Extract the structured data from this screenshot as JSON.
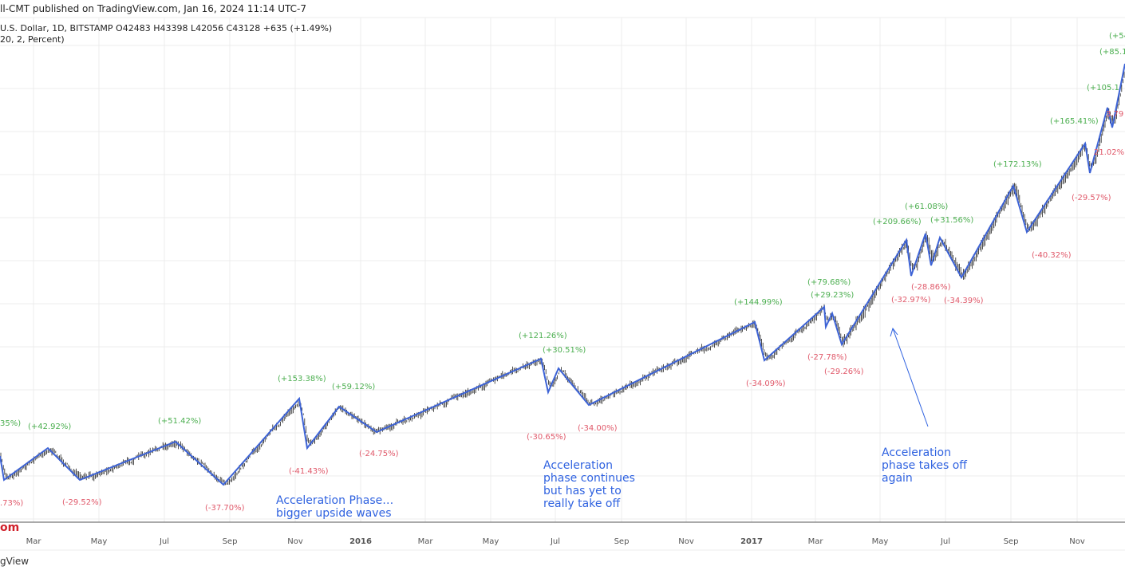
{
  "header": {
    "published": "ll-CMT published on TradingView.com, Jan 16, 2024 11:14 UTC-7",
    "symbol_line": "U.S. Dollar, 1D, BITSTAMP  O42483  H43398  L42056  C43128  +635 (+1.49%)",
    "indicator_line": "20, 2, Percent)"
  },
  "footer": {
    "brand_text": "om",
    "logo_text": "gView"
  },
  "colors": {
    "wave_line": "#3d63d6",
    "up_label": "#4caf50",
    "down_label": "#e0596a",
    "annotation": "#2f62e0",
    "candles": "#222222",
    "grid": "#ececec"
  },
  "chart_data": {
    "type": "candlestick",
    "title": "",
    "grid": true,
    "x_ticks": [
      {
        "label": "Mar",
        "bold": false
      },
      {
        "label": "May",
        "bold": false
      },
      {
        "label": "Jul",
        "bold": false
      },
      {
        "label": "Sep",
        "bold": false
      },
      {
        "label": "Nov",
        "bold": false
      },
      {
        "label": "2016",
        "bold": true
      },
      {
        "label": "Mar",
        "bold": false
      },
      {
        "label": "May",
        "bold": false
      },
      {
        "label": "Jul",
        "bold": false
      },
      {
        "label": "Sep",
        "bold": false
      },
      {
        "label": "Nov",
        "bold": false
      },
      {
        "label": "2017",
        "bold": true
      },
      {
        "label": "Mar",
        "bold": false
      },
      {
        "label": "May",
        "bold": false
      },
      {
        "label": "Jul",
        "bold": false
      },
      {
        "label": "Sep",
        "bold": false
      },
      {
        "label": "Nov",
        "bold": false
      }
    ],
    "wave_labels": [
      {
        "text": "35%)",
        "dir": "up"
      },
      {
        "text": "(+42.92%)",
        "dir": "up"
      },
      {
        "text": "(+51.42%)",
        "dir": "up"
      },
      {
        "text": "(+153.38%)",
        "dir": "up"
      },
      {
        "text": "(+59.12%)",
        "dir": "up"
      },
      {
        "text": "(+121.26%)",
        "dir": "up"
      },
      {
        "text": "(+30.51%)",
        "dir": "up"
      },
      {
        "text": "(+144.99%)",
        "dir": "up"
      },
      {
        "text": "(+79.68%)",
        "dir": "up"
      },
      {
        "text": "(+29.23%)",
        "dir": "up"
      },
      {
        "text": "(+209.66%)",
        "dir": "up"
      },
      {
        "text": "(+61.08%)",
        "dir": "up"
      },
      {
        "text": "(+31.56%)",
        "dir": "up"
      },
      {
        "text": "(+172.13%)",
        "dir": "up"
      },
      {
        "text": "(+165.41%)",
        "dir": "up"
      },
      {
        "text": "(+105.1",
        "dir": "up"
      },
      {
        "text": "(+85.19",
        "dir": "up"
      },
      {
        "text": "(+54.",
        "dir": "up"
      },
      {
        "text": ".73%)",
        "dir": "down"
      },
      {
        "text": "(-29.52%)",
        "dir": "down"
      },
      {
        "text": "(-37.70%)",
        "dir": "down"
      },
      {
        "text": "(-41.43%)",
        "dir": "down"
      },
      {
        "text": "(-24.75%)",
        "dir": "down"
      },
      {
        "text": "(-30.65%)",
        "dir": "down"
      },
      {
        "text": "(-34.00%)",
        "dir": "down"
      },
      {
        "text": "(-34.09%)",
        "dir": "down"
      },
      {
        "text": "(-27.78%)",
        "dir": "down"
      },
      {
        "text": "(-29.26%)",
        "dir": "down"
      },
      {
        "text": "(-32.97%)",
        "dir": "down"
      },
      {
        "text": "(-28.86%)",
        "dir": "down"
      },
      {
        "text": "(-34.39%)",
        "dir": "down"
      },
      {
        "text": "(-40.32%)",
        "dir": "down"
      },
      {
        "text": "(-29.57%)",
        "dir": "down"
      },
      {
        "text": "21.02%)",
        "dir": "down"
      },
      {
        "text": "3.79",
        "dir": "down"
      }
    ],
    "annotations": [
      {
        "lines": [
          "Acceleration Phase…",
          "bigger upside waves"
        ]
      },
      {
        "lines": [
          "Acceleration",
          "phase continues",
          "but has yet to",
          "really take off"
        ]
      },
      {
        "lines": [
          "Acceleration",
          "phase takes off",
          "again"
        ]
      }
    ]
  }
}
